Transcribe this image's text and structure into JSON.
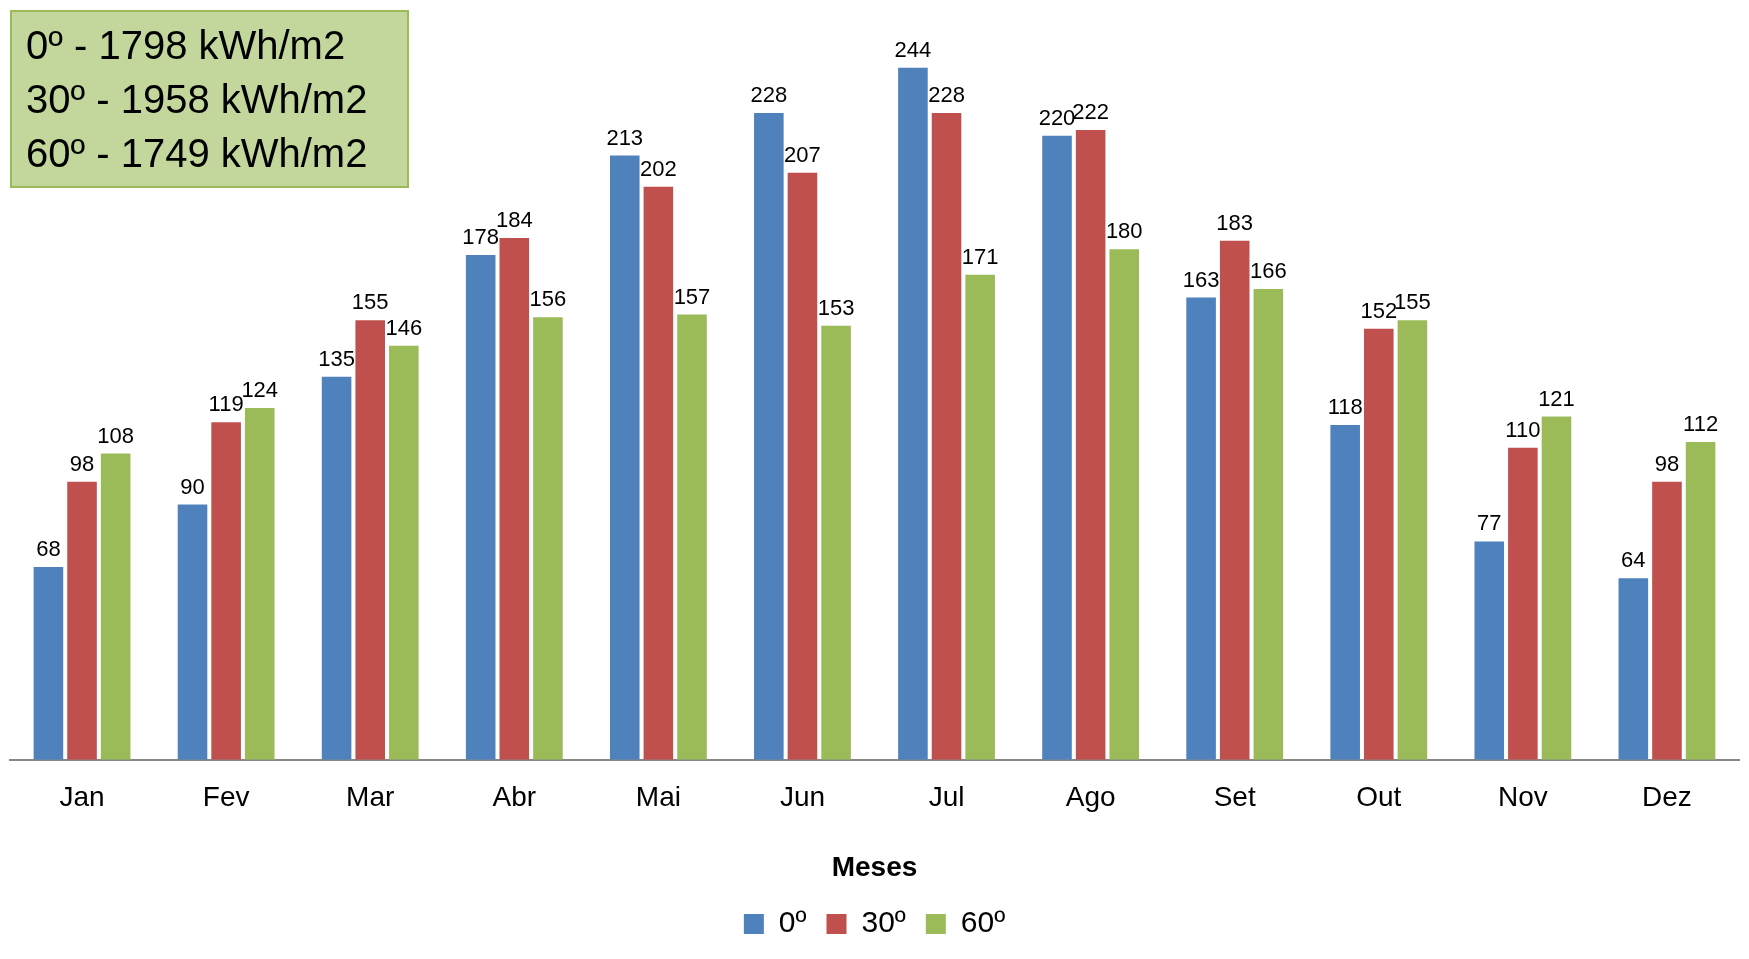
{
  "chart_data": {
    "type": "bar",
    "xlabel": "Meses",
    "categories": [
      "Jan",
      "Fev",
      "Mar",
      "Abr",
      "Mai",
      "Jun",
      "Jul",
      "Ago",
      "Set",
      "Out",
      "Nov",
      "Dez"
    ],
    "series": [
      {
        "name": "0º",
        "color": "#4f81bd",
        "values": [
          68,
          90,
          135,
          178,
          213,
          228,
          244,
          220,
          163,
          118,
          77,
          64
        ]
      },
      {
        "name": "30º",
        "color": "#c0504d",
        "values": [
          98,
          119,
          155,
          184,
          202,
          207,
          228,
          222,
          183,
          152,
          110,
          98
        ]
      },
      {
        "name": "60º",
        "color": "#9bbb59",
        "values": [
          108,
          124,
          146,
          156,
          157,
          153,
          171,
          180,
          166,
          155,
          121,
          112
        ]
      }
    ],
    "data_labels": true,
    "legend": "bottom",
    "grid": false,
    "annotations": [
      "0º - 1798 kWh/m2",
      "30º - 1958 kWh/m2",
      "60º - 1749 kWh/m2"
    ]
  }
}
